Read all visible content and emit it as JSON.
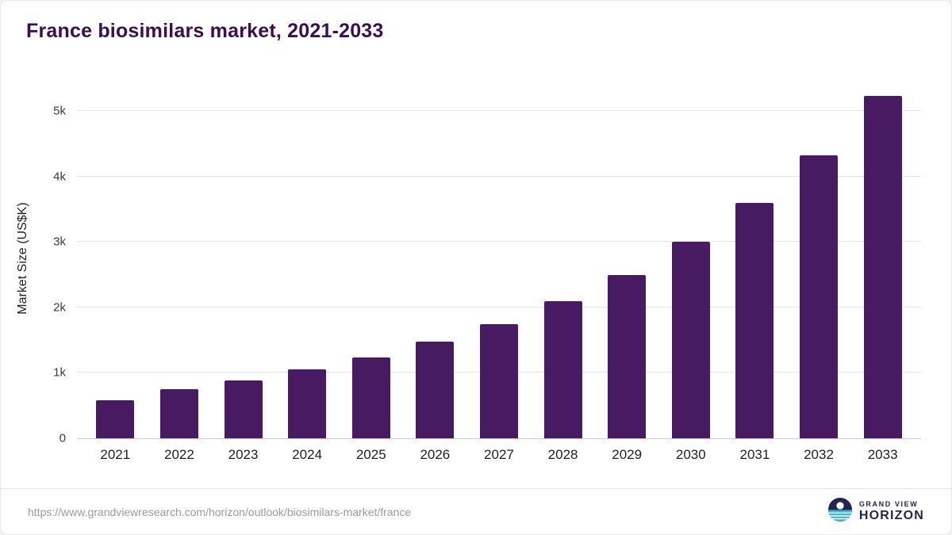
{
  "title": "France biosimilars market, 2021-2033",
  "chart_data": {
    "type": "bar",
    "title": "France biosimilars market, 2021-2033",
    "categories": [
      "2021",
      "2022",
      "2023",
      "2024",
      "2025",
      "2026",
      "2027",
      "2028",
      "2029",
      "2030",
      "2031",
      "2032",
      "2033"
    ],
    "values": [
      580,
      750,
      890,
      1050,
      1240,
      1480,
      1750,
      2090,
      2500,
      3000,
      3600,
      4330,
      5230
    ],
    "xlabel": "",
    "ylabel": "Market Size (US$K)",
    "ylim": [
      0,
      5500
    ],
    "ytick_values": [
      0,
      1000,
      2000,
      3000,
      4000,
      5000
    ],
    "ytick_labels": [
      "0",
      "1k",
      "2k",
      "3k",
      "4k",
      "5k"
    ],
    "grid": true,
    "legend": false,
    "bar_color": "#471a61"
  },
  "colors": {
    "title": "#3a0f50",
    "bar": "#471a61",
    "logo_navy": "#23254d",
    "logo_teal": "#35b9d6"
  },
  "footer": {
    "source_url": "https://www.grandviewresearch.com/horizon/outlook/biosimilars-market/france",
    "logo_line1": "GRAND VIEW",
    "logo_line2": "HORIZON"
  }
}
